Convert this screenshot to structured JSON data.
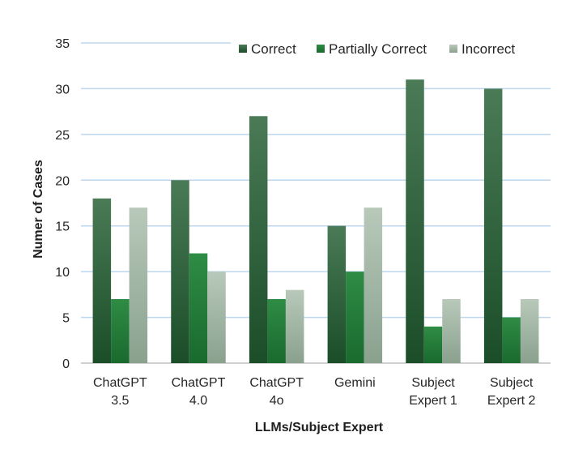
{
  "chart_data": {
    "type": "bar",
    "title": "",
    "xlabel": "LLMs/Subject Expert",
    "ylabel": "Numer of Cases",
    "ylim": [
      0,
      35
    ],
    "yticks": [
      0,
      5,
      10,
      15,
      20,
      25,
      30,
      35
    ],
    "grid": true,
    "legend_position": "top-right",
    "categories": [
      [
        "ChatGPT",
        "3.5"
      ],
      [
        "ChatGPT",
        "4.0"
      ],
      [
        "ChatGPT",
        "4o"
      ],
      [
        "Gemini"
      ],
      [
        "Subject",
        "Expert 1"
      ],
      [
        "Subject",
        "Expert 2"
      ]
    ],
    "series": [
      {
        "name": "Correct",
        "color": "#1e5a30",
        "values": [
          18,
          20,
          27,
          15,
          31,
          30
        ]
      },
      {
        "name": "Partially Correct",
        "color": "#1f7a35",
        "values": [
          7,
          12,
          7,
          10,
          4,
          5
        ]
      },
      {
        "name": "Incorrect",
        "color": "#a3b8a6",
        "values": [
          17,
          10,
          8,
          17,
          7,
          7
        ]
      }
    ]
  }
}
